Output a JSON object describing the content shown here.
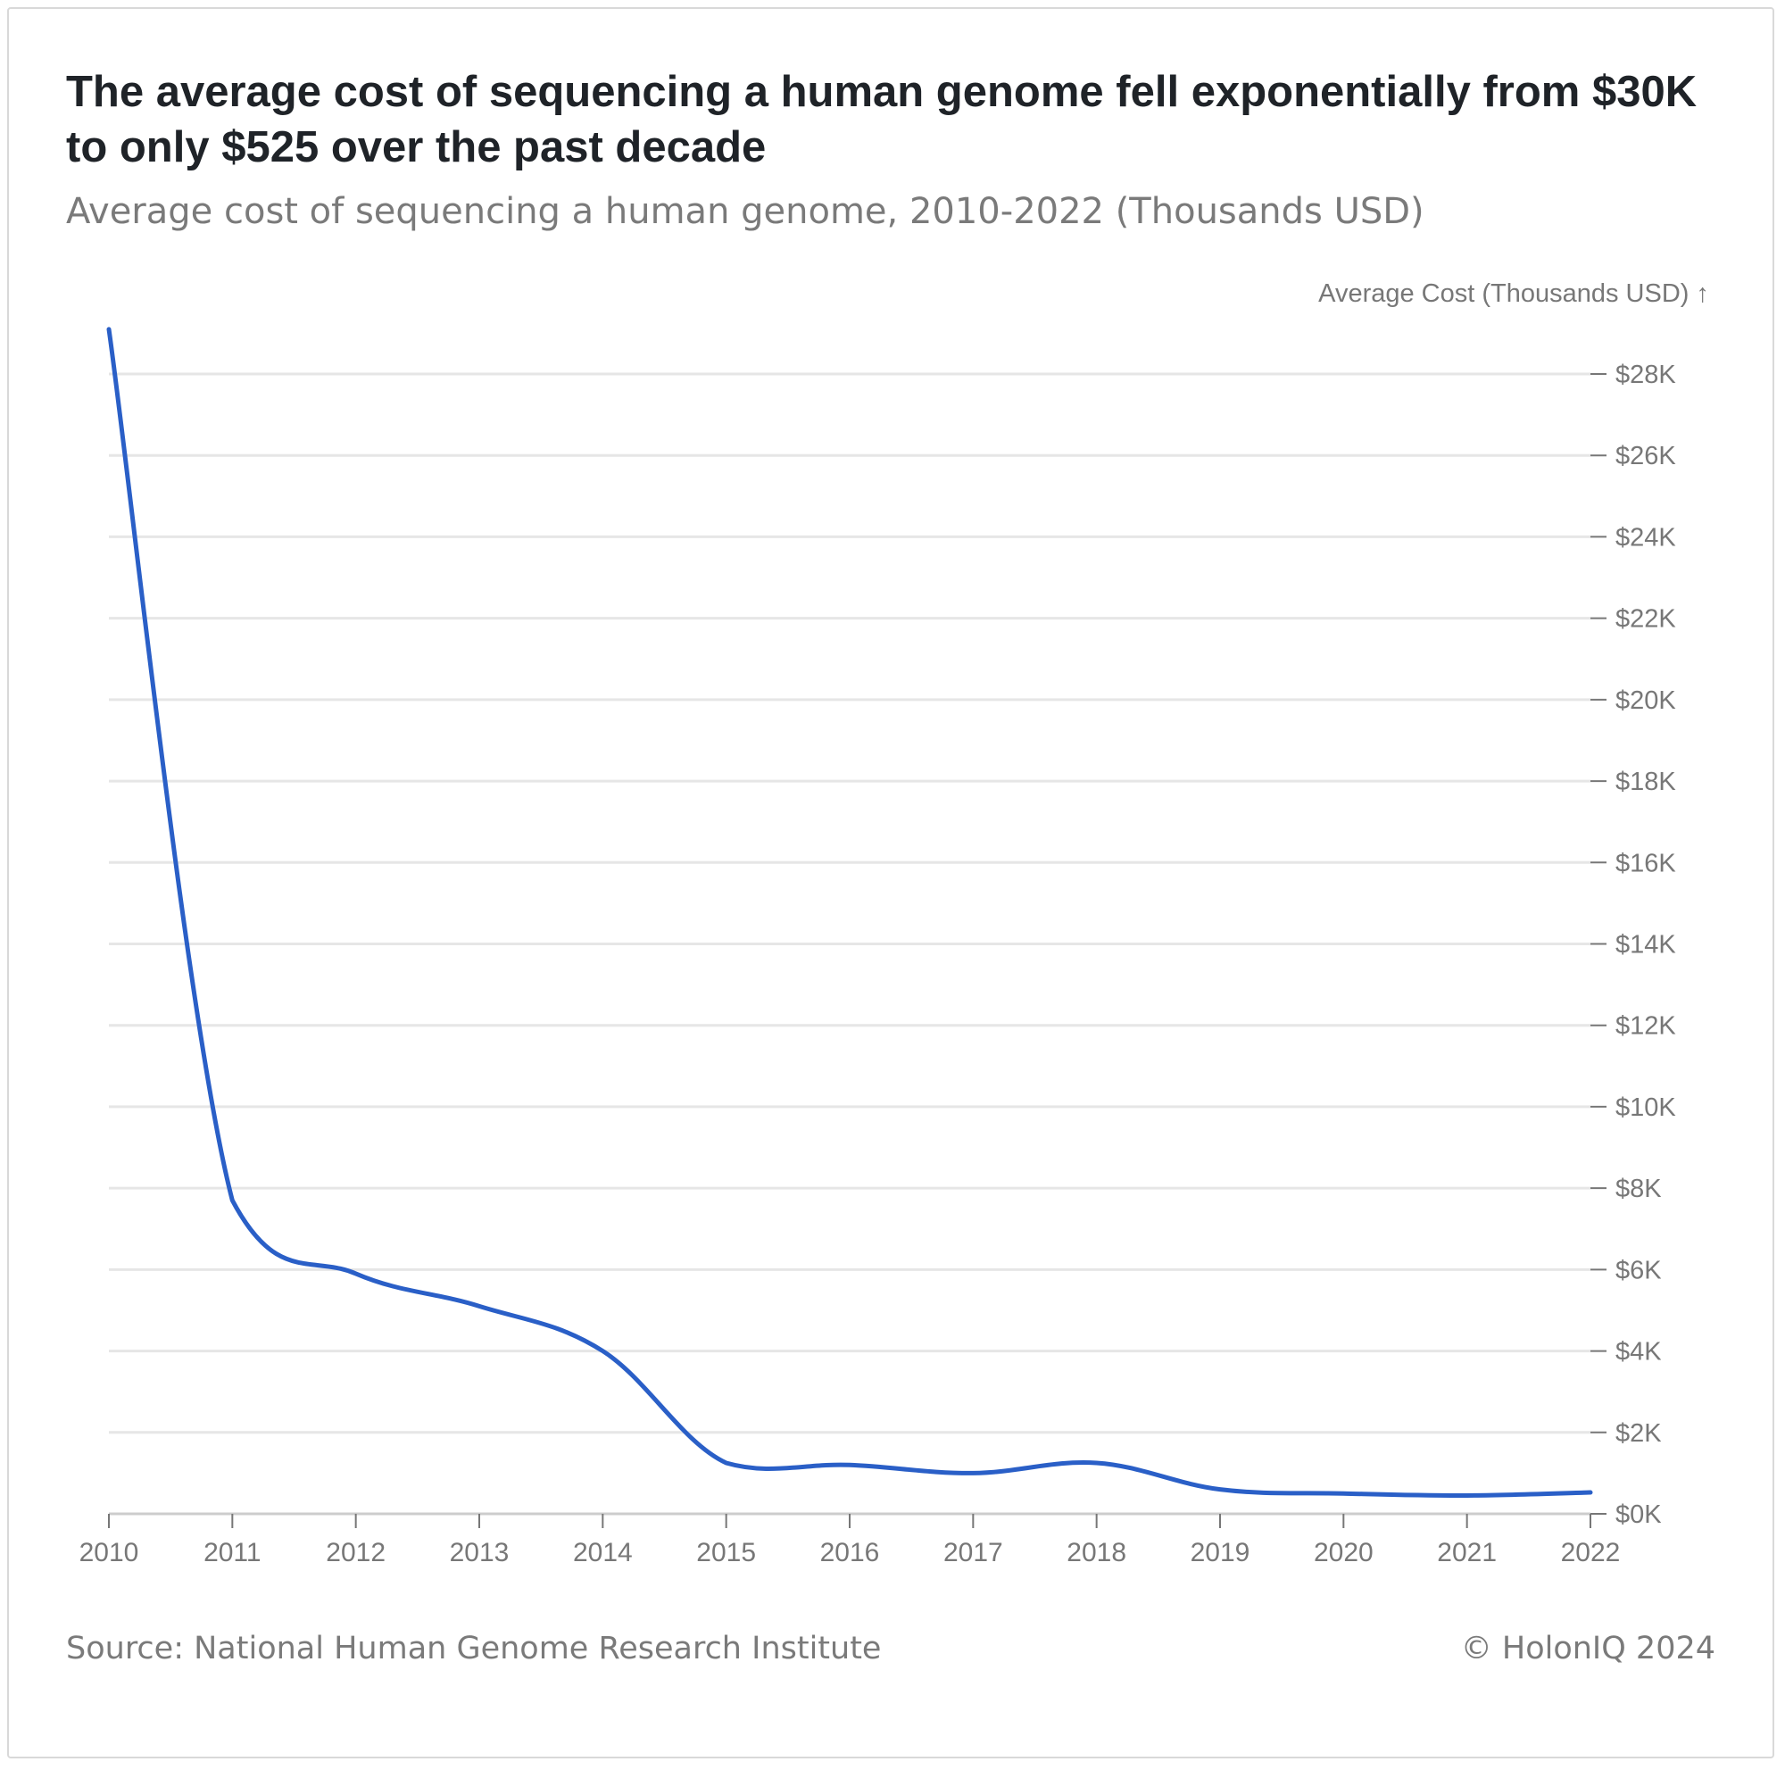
{
  "header": {
    "title": "The average cost of sequencing a human genome fell exponentially from $30K to only $525 over the past decade",
    "subtitle": "Average cost of sequencing a human genome, 2010-2022 (Thousands USD)"
  },
  "footer": {
    "source": "Source: National Human Genome Research Institute",
    "credit": "© HolonIQ 2024"
  },
  "colors": {
    "line": "#2a5fc7",
    "grid": "#e6e6e6",
    "axis_text": "#777777"
  },
  "chart_data": {
    "type": "line",
    "title": "The average cost of sequencing a human genome fell exponentially from $30K to only $525 over the past decade",
    "subtitle": "Average cost of sequencing a human genome, 2010-2022 (Thousands USD)",
    "ylabel": "Average Cost (Thousands USD) ↑",
    "xlabel": "",
    "y_axis_side": "right",
    "grid": true,
    "ylim": [
      0,
      28
    ],
    "xlim": [
      2010,
      2022
    ],
    "x_ticks": [
      "2010",
      "2011",
      "2012",
      "2013",
      "2014",
      "2015",
      "2016",
      "2017",
      "2018",
      "2019",
      "2020",
      "2021",
      "2022"
    ],
    "y_ticks": [
      0,
      2,
      4,
      6,
      8,
      10,
      12,
      14,
      16,
      18,
      20,
      22,
      24,
      26,
      28
    ],
    "y_tick_labels": [
      "$0K",
      "$2K",
      "$4K",
      "$6K",
      "$8K",
      "$10K",
      "$12K",
      "$14K",
      "$16K",
      "$18K",
      "$20K",
      "$22K",
      "$24K",
      "$26K",
      "$28K"
    ],
    "series": [
      {
        "x": [
          2010,
          2011,
          2012,
          2013,
          2014,
          2015,
          2016,
          2017,
          2018,
          2019,
          2020,
          2021,
          2022
        ],
        "values": [
          29.1,
          7.7,
          5.9,
          5.1,
          4.0,
          1.25,
          1.2,
          1.0,
          1.25,
          0.6,
          0.5,
          0.45,
          0.525
        ]
      }
    ]
  }
}
